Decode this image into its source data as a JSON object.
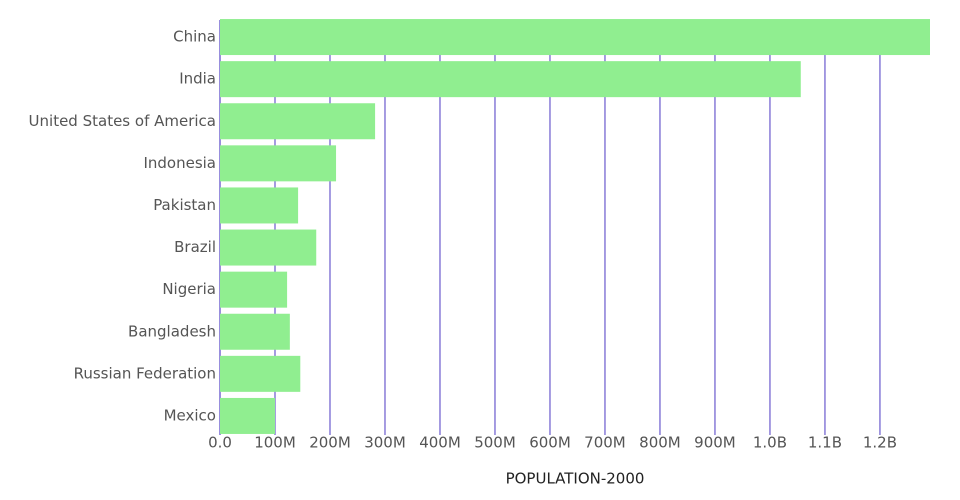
{
  "chart_data": {
    "type": "hbar",
    "x_label": "POPULATION-2000",
    "categories": [
      "China",
      "India",
      "United States of America",
      "Indonesia",
      "Pakistan",
      "Brazil",
      "Nigeria",
      "Bangladesh",
      "Russian Federation",
      "Mexico"
    ],
    "values": [
      1291000000,
      1056000000,
      282000000,
      211000000,
      142000000,
      175000000,
      122000000,
      127000000,
      146000000,
      100000000
    ],
    "color": "#90ee90",
    "grid_color": "#6a5acd",
    "grid": true,
    "xlim": [
      0,
      1291000000
    ],
    "xticks": [
      {
        "value": 0,
        "label": "0.0"
      },
      {
        "value": 100000000,
        "label": "100M"
      },
      {
        "value": 200000000,
        "label": "200M"
      },
      {
        "value": 300000000,
        "label": "300M"
      },
      {
        "value": 400000000,
        "label": "400M"
      },
      {
        "value": 500000000,
        "label": "500M"
      },
      {
        "value": 600000000,
        "label": "600M"
      },
      {
        "value": 700000000,
        "label": "700M"
      },
      {
        "value": 800000000,
        "label": "800M"
      },
      {
        "value": 900000000,
        "label": "900M"
      },
      {
        "value": 1000000000,
        "label": "1.0B"
      },
      {
        "value": 1100000000,
        "label": "1.1B"
      },
      {
        "value": 1200000000,
        "label": "1.2B"
      }
    ]
  }
}
